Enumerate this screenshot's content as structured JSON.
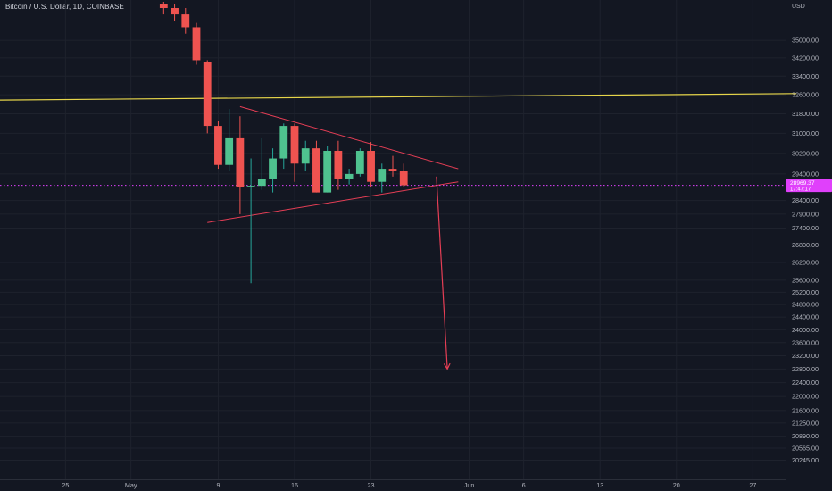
{
  "header": {
    "title": "Bitcoin / U.S. Dollar, 1D, COINBASE"
  },
  "price_axis": {
    "currency": "USD",
    "last_price_label": "28969.37",
    "countdown_label": "17:47:17"
  },
  "colors": {
    "background": "#131722",
    "up": "#26a69a",
    "up_body": "#4fc28f",
    "down": "#ef5350",
    "horizontal_line": "#e6d54a",
    "triangle": "#e53e55",
    "price_tag": "#e040fb",
    "axis_text": "#b2b5be",
    "grid": "#1e222d"
  },
  "chart_data": {
    "type": "candlestick",
    "x_scale": "daily",
    "y_scale": "log",
    "ylim": [
      20000,
      36500
    ],
    "xlim": [
      "2022-04-19",
      "2022-06-30"
    ],
    "y_ticks": [
      35000,
      34200,
      33400,
      32600,
      31800,
      31000,
      30200,
      29400,
      28400,
      27900,
      27400,
      26800,
      26200,
      25600,
      25200,
      24800,
      24400,
      24000,
      23600,
      23200,
      22800,
      22400,
      22000,
      21600,
      21250,
      20890,
      20565,
      20245
    ],
    "x_ticks": [
      {
        "date": "2022-04-25",
        "label": "25"
      },
      {
        "date": "2022-05-01",
        "label": "May"
      },
      {
        "date": "2022-05-09",
        "label": "9"
      },
      {
        "date": "2022-05-16",
        "label": "16"
      },
      {
        "date": "2022-05-23",
        "label": "23"
      },
      {
        "date": "2022-06-01",
        "label": "Jun"
      },
      {
        "date": "2022-06-06",
        "label": "6"
      },
      {
        "date": "2022-06-13",
        "label": "13"
      },
      {
        "date": "2022-06-20",
        "label": "20"
      },
      {
        "date": "2022-06-27",
        "label": "27"
      }
    ],
    "candles": [
      {
        "date": "2022-05-04",
        "open": 36700,
        "high": 36800,
        "low": 36200,
        "close": 36500
      },
      {
        "date": "2022-05-05",
        "open": 36500,
        "high": 36700,
        "low": 35900,
        "close": 36200
      },
      {
        "date": "2022-05-06",
        "open": 36200,
        "high": 36500,
        "low": 35300,
        "close": 35600
      },
      {
        "date": "2022-05-07",
        "open": 35600,
        "high": 35800,
        "low": 33900,
        "close": 34100
      },
      {
        "date": "2022-05-08",
        "open": 34000,
        "high": 34100,
        "low": 31000,
        "close": 31300
      },
      {
        "date": "2022-05-09",
        "open": 31300,
        "high": 31500,
        "low": 29600,
        "close": 29750
      },
      {
        "date": "2022-05-10",
        "open": 29750,
        "high": 32000,
        "low": 29500,
        "close": 30800
      },
      {
        "date": "2022-05-11",
        "open": 30800,
        "high": 31700,
        "low": 27900,
        "close": 28900
      },
      {
        "date": "2022-05-12",
        "open": 28900,
        "high": 30000,
        "low": 25500,
        "close": 28950
      },
      {
        "date": "2022-05-13",
        "open": 28950,
        "high": 30800,
        "low": 28800,
        "close": 29200
      },
      {
        "date": "2022-05-14",
        "open": 29200,
        "high": 30400,
        "low": 28700,
        "close": 30000
      },
      {
        "date": "2022-05-15",
        "open": 30000,
        "high": 31400,
        "low": 29600,
        "close": 31300
      },
      {
        "date": "2022-05-16",
        "open": 31300,
        "high": 31400,
        "low": 29100,
        "close": 29800
      },
      {
        "date": "2022-05-17",
        "open": 29800,
        "high": 30700,
        "low": 29500,
        "close": 30400
      },
      {
        "date": "2022-05-18",
        "open": 30400,
        "high": 30700,
        "low": 28700,
        "close": 28700
      },
      {
        "date": "2022-05-19",
        "open": 28700,
        "high": 30500,
        "low": 28700,
        "close": 30300
      },
      {
        "date": "2022-05-20",
        "open": 30300,
        "high": 30700,
        "low": 28800,
        "close": 29200
      },
      {
        "date": "2022-05-21",
        "open": 29200,
        "high": 29600,
        "low": 29000,
        "close": 29400
      },
      {
        "date": "2022-05-22",
        "open": 29400,
        "high": 30400,
        "low": 29300,
        "close": 30300
      },
      {
        "date": "2022-05-23",
        "open": 30300,
        "high": 30650,
        "low": 28900,
        "close": 29100
      },
      {
        "date": "2022-05-24",
        "open": 29100,
        "high": 29800,
        "low": 28700,
        "close": 29600
      },
      {
        "date": "2022-05-25",
        "open": 29600,
        "high": 30100,
        "low": 29300,
        "close": 29500
      },
      {
        "date": "2022-05-26",
        "open": 29500,
        "high": 29800,
        "low": 28900,
        "close": 28970
      }
    ],
    "horizontal_line": {
      "start": [
        "2022-04-13",
        32350
      ],
      "end": [
        "2022-07-01",
        32650
      ]
    },
    "triangle_upper": {
      "start": [
        "2022-05-11",
        32100
      ],
      "end": [
        "2022-05-31",
        29600
      ]
    },
    "triangle_lower": {
      "start": [
        "2022-05-08",
        27600
      ],
      "end": [
        "2022-05-31",
        29100
      ]
    },
    "target_arrow": {
      "start": [
        "2022-05-29",
        29300
      ],
      "end": [
        "2022-05-30",
        22800
      ]
    },
    "last_price": 28969.37
  }
}
